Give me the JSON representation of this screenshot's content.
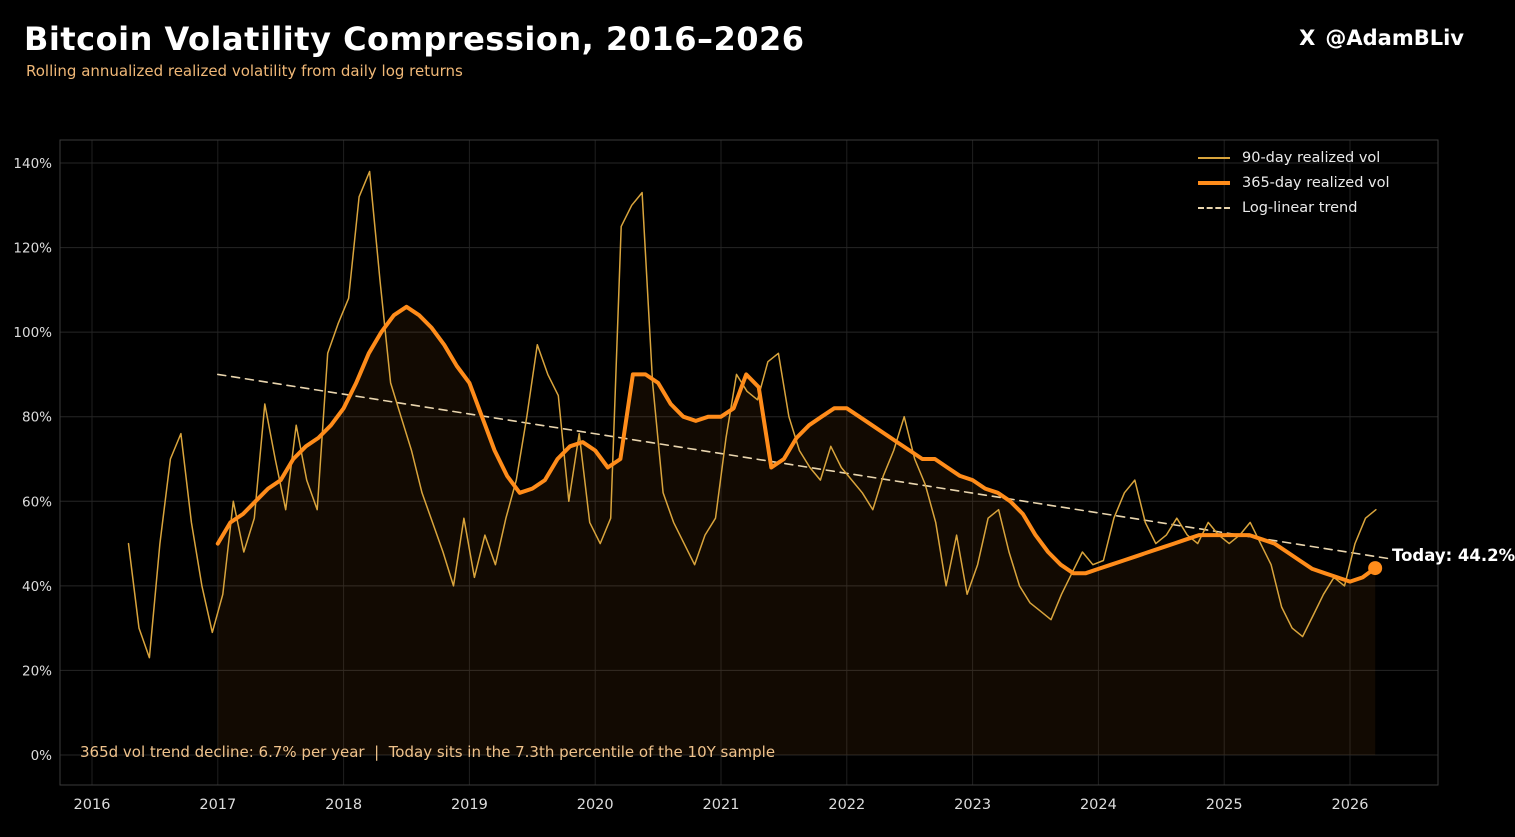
{
  "header": {
    "title": "Bitcoin Volatility Compression, 2016–2026",
    "subtitle": "Rolling annualized realized volatility from daily log returns",
    "byline_icon": "X",
    "byline_handle": "@AdamBLiv"
  },
  "chart_data": {
    "type": "line",
    "title": "Bitcoin Volatility Compression, 2016-2026",
    "xlabel": "",
    "ylabel": "",
    "ylim": [
      0,
      140
    ],
    "xlim": [
      2015.75,
      2026.7
    ],
    "grid": true,
    "legend_position": "upper right",
    "y_ticks": [
      {
        "v": 0,
        "label": "0%"
      },
      {
        "v": 20,
        "label": "20%"
      },
      {
        "v": 40,
        "label": "40%"
      },
      {
        "v": 60,
        "label": "60%"
      },
      {
        "v": 80,
        "label": "80%"
      },
      {
        "v": 100,
        "label": "100%"
      },
      {
        "v": 120,
        "label": "120%"
      },
      {
        "v": 140,
        "label": "140%"
      }
    ],
    "x_ticks": [
      {
        "v": 2016,
        "label": "2016"
      },
      {
        "v": 2017,
        "label": "2017"
      },
      {
        "v": 2018,
        "label": "2018"
      },
      {
        "v": 2019,
        "label": "2019"
      },
      {
        "v": 2020,
        "label": "2020"
      },
      {
        "v": 2021,
        "label": "2021"
      },
      {
        "v": 2022,
        "label": "2022"
      },
      {
        "v": 2023,
        "label": "2023"
      },
      {
        "v": 2024,
        "label": "2024"
      },
      {
        "v": 2025,
        "label": "2025"
      },
      {
        "v": 2026,
        "label": "2026"
      }
    ],
    "legend": [
      {
        "label": "90-day realized vol",
        "style": "thin",
        "color": "#d9a43c"
      },
      {
        "label": "365-day realized vol",
        "style": "thick",
        "color": "#ff8c1a"
      },
      {
        "label": "Log-linear trend",
        "style": "dashed",
        "color": "#e9d5ae"
      }
    ],
    "series": [
      {
        "name": "Log-linear trend",
        "color": "#e9d5ae",
        "width": 1.6,
        "dash": "8 6",
        "x": [
          2017.0,
          2026.3
        ],
        "values": [
          90,
          46.5
        ]
      },
      {
        "name": "90-day realized vol",
        "color": "#d9a43c",
        "width": 1.5,
        "x_start": 2016.29,
        "x_step": 0.08333,
        "values": [
          50,
          30,
          23,
          50,
          70,
          76,
          55,
          40,
          29,
          38,
          60,
          48,
          56,
          83,
          70,
          58,
          78,
          65,
          58,
          95,
          102,
          108,
          132,
          138,
          112,
          88,
          80,
          72,
          62,
          55,
          48,
          40,
          56,
          42,
          52,
          45,
          56,
          65,
          80,
          97,
          90,
          85,
          60,
          76,
          55,
          50,
          56,
          125,
          130,
          133,
          88,
          62,
          55,
          50,
          45,
          52,
          56,
          75,
          90,
          86,
          84,
          93,
          95,
          80,
          72,
          68,
          65,
          73,
          68,
          65,
          62,
          58,
          66,
          72,
          80,
          70,
          64,
          55,
          40,
          52,
          38,
          45,
          56,
          58,
          48,
          40,
          36,
          34,
          32,
          38,
          43,
          48,
          45,
          46,
          56,
          62,
          65,
          55,
          50,
          52,
          56,
          52,
          50,
          55,
          52,
          50,
          52,
          55,
          50,
          45,
          35,
          30,
          28,
          33,
          38,
          42,
          40,
          50,
          56,
          58
        ]
      },
      {
        "name": "365-day realized vol",
        "color": "#ff8c1a",
        "width": 4,
        "fill": "rgba(255,140,26,0.07)",
        "x_start": 2017.0,
        "x_step": 0.1,
        "values": [
          50,
          55,
          57,
          60,
          63,
          65,
          70,
          73,
          75,
          78,
          82,
          88,
          95,
          100,
          104,
          106,
          104,
          101,
          97,
          92,
          88,
          80,
          72,
          66,
          62,
          63,
          65,
          70,
          73,
          74,
          72,
          68,
          70,
          90,
          90,
          88,
          83,
          80,
          79,
          80,
          80,
          82,
          90,
          87,
          68,
          70,
          75,
          78,
          80,
          82,
          82,
          80,
          78,
          76,
          74,
          72,
          70,
          70,
          68,
          66,
          65,
          63,
          62,
          60,
          57,
          52,
          48,
          45,
          43,
          43,
          44,
          45,
          46,
          47,
          48,
          49,
          50,
          51,
          52,
          52,
          52,
          52,
          52,
          51,
          50,
          48,
          46,
          44,
          43,
          42,
          41,
          42,
          44.2
        ]
      }
    ],
    "annotations": {
      "today_label": "Today: 44.2%",
      "today_point": {
        "x": 2026.2,
        "y": 44.2
      },
      "footnote": "365d vol trend decline: 6.7% per year  |  Today sits in the 7.3th percentile of the 10Y sample"
    }
  }
}
